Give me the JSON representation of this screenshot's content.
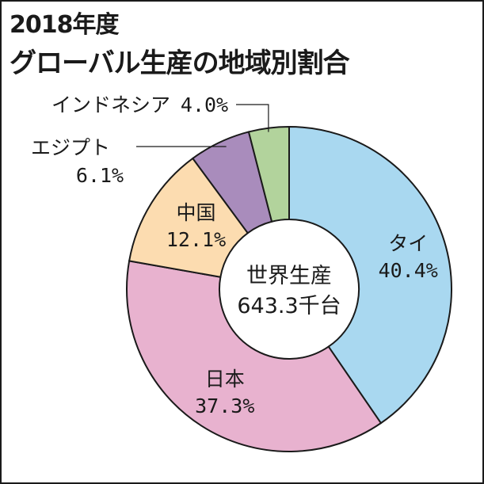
{
  "chart_data": {
    "type": "pie",
    "title": "2018年度",
    "subtitle": "グローバル生産の地域別割合",
    "center_label": [
      "世界生産",
      "643.3千台"
    ],
    "slices": [
      {
        "name": "タイ",
        "value": 40.4,
        "value_label": "40.4%",
        "color": "#a9d8f0"
      },
      {
        "name": "日本",
        "value": 37.3,
        "value_label": "37.3%",
        "color": "#e8b2cf"
      },
      {
        "name": "中国",
        "value": 12.1,
        "value_label": "12.1%",
        "color": "#fcdcb0"
      },
      {
        "name": "エジプト",
        "value": 6.1,
        "value_label": "6.1%",
        "color": "#a98cbc"
      },
      {
        "name": "インドネシア",
        "value": 4.0,
        "value_label": "4.0%",
        "color": "#b2d39c"
      }
    ]
  }
}
